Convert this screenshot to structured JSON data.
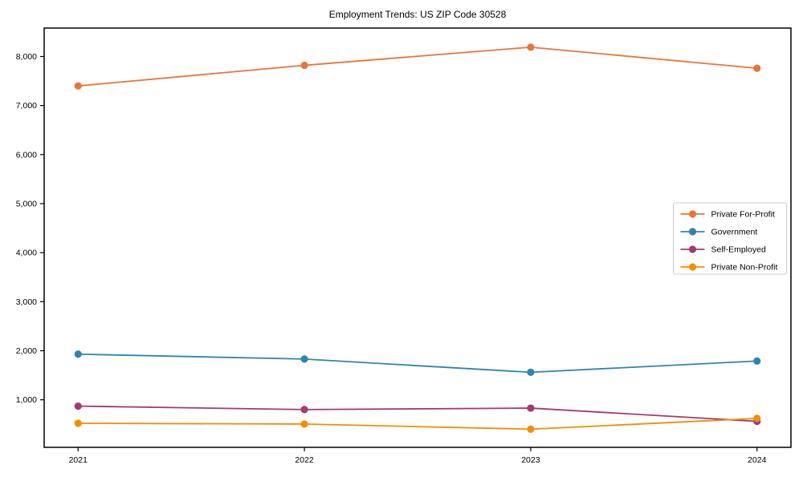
{
  "figure": {
    "title": "Employment Trends: US ZIP Code 30528"
  },
  "chart_data": {
    "type": "line",
    "title": "Employment Trends: US ZIP Code 30528",
    "xlabel": "",
    "ylabel": "",
    "x": [
      2021,
      2022,
      2023,
      2024
    ],
    "xtick_labels": [
      "2021",
      "2022",
      "2023",
      "2024"
    ],
    "yticks": [
      1000,
      2000,
      3000,
      4000,
      5000,
      6000,
      7000,
      8000
    ],
    "ytick_labels": [
      "1,000",
      "2,000",
      "3,000",
      "4,000",
      "5,000",
      "6,000",
      "7,000",
      "8,000"
    ],
    "xlim": [
      2020.85,
      2024.15
    ],
    "ylim": [
      30,
      8580
    ],
    "grid": false,
    "legend_position": "center right",
    "marker": "circle",
    "series": [
      {
        "name": "Private For-Profit",
        "color": "#E8743B",
        "values": [
          7400,
          7820,
          8190,
          7760
        ]
      },
      {
        "name": "Government",
        "color": "#2E86AB",
        "values": [
          1930,
          1830,
          1560,
          1790
        ]
      },
      {
        "name": "Self-Employed",
        "color": "#A23B72",
        "values": [
          870,
          800,
          830,
          560
        ]
      },
      {
        "name": "Private Non-Profit",
        "color": "#F18F01",
        "values": [
          520,
          505,
          400,
          620
        ]
      }
    ]
  }
}
